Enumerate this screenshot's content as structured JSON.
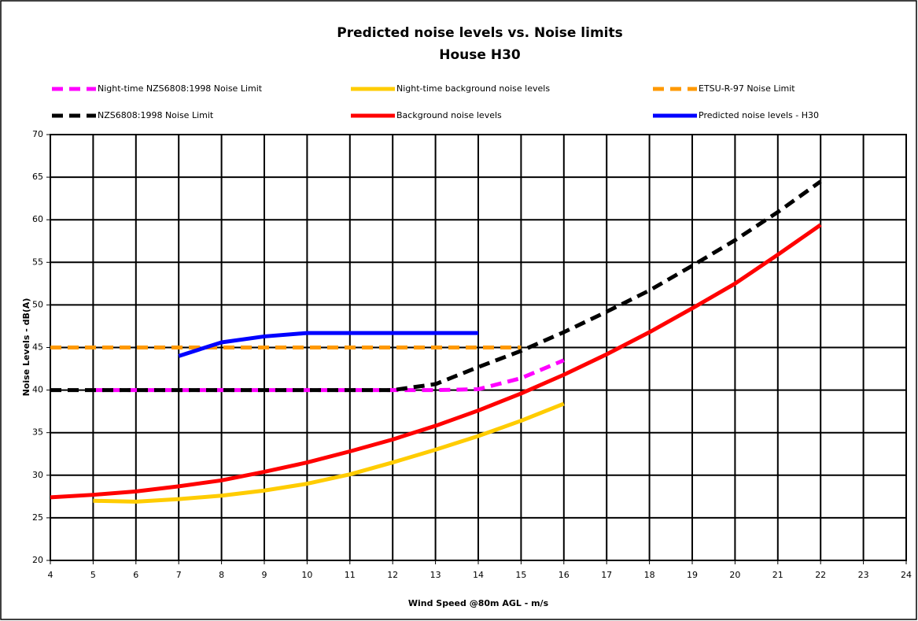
{
  "chart_data": {
    "type": "line",
    "title": "Predicted noise levels vs. Noise limits",
    "subtitle": "House H30",
    "x_label": "Wind Speed @80m  AGL - m/s",
    "y_label": "Noise Levels - dB(A)",
    "xlim": [
      4,
      24
    ],
    "xticks": [
      4,
      5,
      6,
      7,
      8,
      9,
      10,
      11,
      12,
      13,
      14,
      15,
      16,
      17,
      18,
      19,
      20,
      21,
      22,
      23,
      24
    ],
    "ylim": [
      20,
      70
    ],
    "yticks": [
      20,
      25,
      30,
      35,
      40,
      45,
      50,
      55,
      60,
      65,
      70
    ],
    "grid": true,
    "series": [
      {
        "name": "Night-time NZS6808:1998 Noise Limit",
        "color": "#ff00ff",
        "style": "dashed",
        "x": [
          5,
          6,
          7,
          8,
          9,
          10,
          11,
          12,
          13,
          14,
          15,
          16
        ],
        "values": [
          40,
          40,
          40,
          40,
          40,
          40,
          40,
          40,
          40,
          40.1,
          41.4,
          43.5
        ]
      },
      {
        "name": "Night-time background noise levels",
        "color": "#ffcc00",
        "style": "solid",
        "x": [
          5,
          6,
          7,
          8,
          9,
          10,
          11,
          12,
          13,
          14,
          15,
          16
        ],
        "values": [
          27,
          26.9,
          27.2,
          27.6,
          28.2,
          29,
          30.1,
          31.5,
          33,
          34.6,
          36.4,
          38.4
        ]
      },
      {
        "name": "ETSU-R-97 Noise Limit",
        "color": "#ff9900",
        "style": "dashed",
        "x": [
          4,
          5,
          6,
          7,
          8,
          9,
          10,
          11,
          12,
          13,
          14,
          15
        ],
        "values": [
          45,
          45,
          45,
          45,
          45,
          45,
          45,
          45,
          45,
          45,
          45,
          45
        ]
      },
      {
        "name": "NZS6808:1998 Noise Limit",
        "color": "#000000",
        "style": "dashed",
        "x": [
          4,
          5,
          6,
          7,
          8,
          9,
          10,
          11,
          12,
          13,
          14,
          15,
          16,
          17,
          18,
          19,
          20,
          21,
          22
        ],
        "values": [
          40,
          40,
          40,
          40,
          40,
          40,
          40,
          40,
          40,
          40.7,
          42.7,
          44.6,
          46.8,
          49.2,
          51.7,
          54.6,
          57.6,
          60.9,
          64.5
        ]
      },
      {
        "name": "Background noise levels",
        "color": "#ff0000",
        "style": "solid",
        "x": [
          4,
          5,
          6,
          7,
          8,
          9,
          10,
          11,
          12,
          13,
          14,
          15,
          16,
          17,
          18,
          19,
          20,
          21,
          22
        ],
        "values": [
          27.4,
          27.7,
          28.1,
          28.7,
          29.4,
          30.4,
          31.5,
          32.8,
          34.2,
          35.8,
          37.6,
          39.6,
          41.8,
          44.2,
          46.8,
          49.6,
          52.5,
          55.9,
          59.4
        ]
      },
      {
        "name": "Predicted noise levels - H30",
        "color": "#0000ff",
        "style": "solid",
        "x": [
          7,
          8,
          9,
          10,
          11,
          12,
          13,
          14
        ],
        "values": [
          44,
          45.6,
          46.3,
          46.7,
          46.7,
          46.7,
          46.7,
          46.7
        ]
      }
    ]
  }
}
